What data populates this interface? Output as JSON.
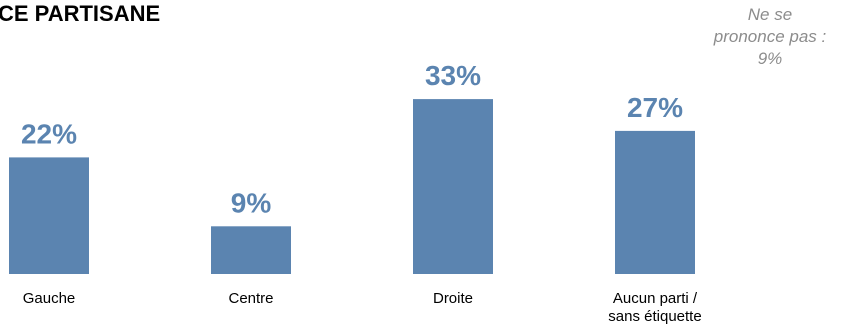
{
  "title": "CE PARTISANE",
  "note": {
    "lines": [
      "Ne se",
      "prononce pas :",
      "9%"
    ]
  },
  "colors": {
    "bar": "#5b84b0",
    "value_label": "#5b84b0",
    "note": "#8c8c8c"
  },
  "chart_data": {
    "type": "bar",
    "title": "CE PARTISANE",
    "categories": [
      [
        "Gauche"
      ],
      [
        "Centre"
      ],
      [
        "Droite"
      ],
      [
        "Aucun parti /",
        "sans étiquette"
      ]
    ],
    "values": [
      22,
      9,
      33,
      27
    ],
    "value_labels": [
      "22%",
      "9%",
      "33%",
      "27%"
    ],
    "unit": "%",
    "ylim": [
      0,
      33
    ],
    "grid": false,
    "legend": "none"
  }
}
